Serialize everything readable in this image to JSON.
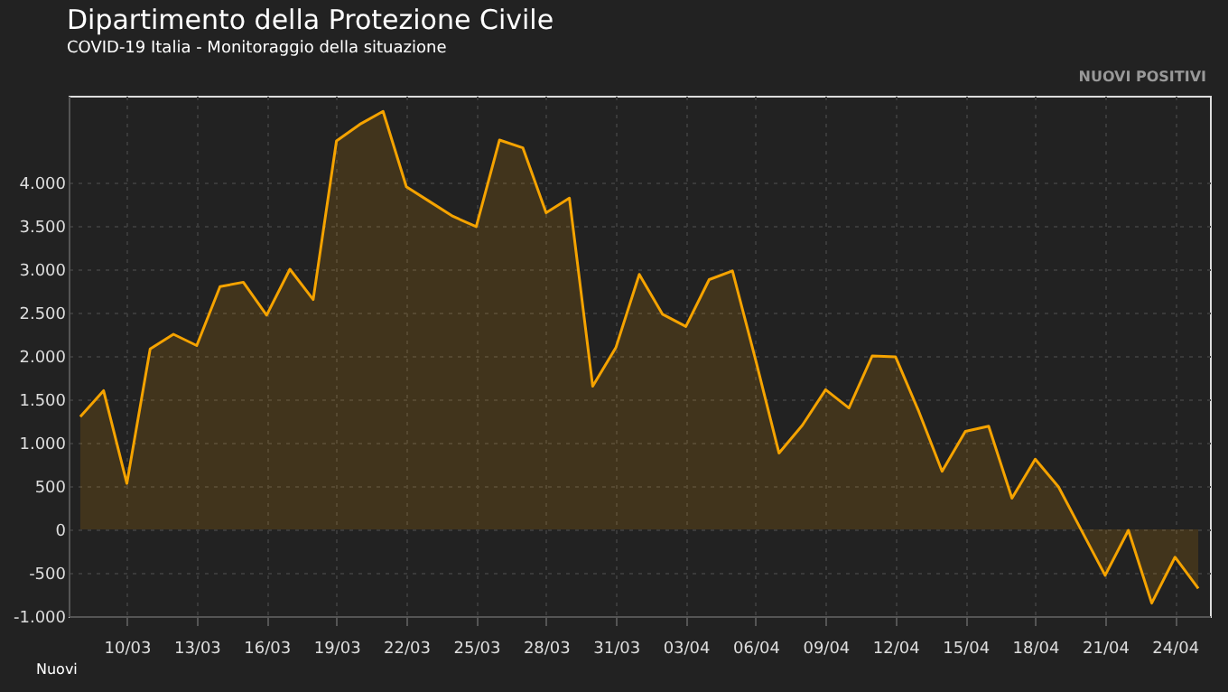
{
  "chart_data": {
    "type": "area",
    "title": "Dipartimento della Protezione Civile",
    "subtitle": "COVID-19 Italia - Monitoraggio della situazione",
    "annotations": [
      "NUOVI POSITIVI",
      "Nuovi"
    ],
    "x": [
      "--03-08",
      "--03-09",
      "--03-10",
      "--03-11",
      "--03-12",
      "--03-13",
      "--03-14",
      "--03-15",
      "--03-16",
      "--03-17",
      "--03-18",
      "--03-19",
      "--03-20",
      "--03-21",
      "--03-22",
      "--03-23",
      "--03-24",
      "--03-25",
      "--03-26",
      "--03-27",
      "--03-28",
      "--03-29",
      "--03-30",
      "--03-31",
      "--04-01",
      "--04-02",
      "--04-03",
      "--04-04",
      "--04-05",
      "--04-06",
      "--04-07",
      "--04-08",
      "--04-09",
      "--04-10",
      "--04-11",
      "--04-12",
      "--04-13",
      "--04-14",
      "--04-15",
      "--04-16",
      "--04-17",
      "--04-18",
      "--04-19",
      "--04-20",
      "--04-21",
      "--04-22",
      "--04-23",
      "--04-24",
      "--04-25"
    ],
    "series": [
      {
        "color": "#f5a300",
        "values": [
          1300,
          1600,
          530,
          2080,
          2250,
          2120,
          2800,
          2850,
          2470,
          3000,
          2650,
          4480,
          4670,
          4820,
          3950,
          3780,
          3610,
          3490,
          4490,
          4400,
          3650,
          3820,
          1650,
          2100,
          2940,
          2480,
          2340,
          2880,
          2980,
          1950,
          880,
          1200,
          1610,
          1400,
          2000,
          1990,
          1360,
          670,
          1130,
          1190,
          360,
          810,
          490,
          -20,
          -530,
          -10,
          -850,
          -320,
          -680
        ]
      }
    ],
    "ylim": [
      -1000,
      5000
    ],
    "yticks": [
      {
        "value": -1000,
        "label": "-1.000"
      },
      {
        "value": -500,
        "label": "-500"
      },
      {
        "value": 0,
        "label": "0"
      },
      {
        "value": 500,
        "label": "500"
      },
      {
        "value": 1000,
        "label": "1.000"
      },
      {
        "value": 1500,
        "label": "1.500"
      },
      {
        "value": 2000,
        "label": "2.000"
      },
      {
        "value": 2500,
        "label": "2.500"
      },
      {
        "value": 3000,
        "label": "3.000"
      },
      {
        "value": 3500,
        "label": "3.500"
      },
      {
        "value": 4000,
        "label": "4.000"
      }
    ],
    "xlim": [
      "--03-07T12:00",
      "--04-25T12:00"
    ],
    "xticks": [
      {
        "value": "--03-10",
        "label": "10/03"
      },
      {
        "value": "--03-13",
        "label": "13/03"
      },
      {
        "value": "--03-16",
        "label": "16/03"
      },
      {
        "value": "--03-19",
        "label": "19/03"
      },
      {
        "value": "--03-22",
        "label": "22/03"
      },
      {
        "value": "--03-25",
        "label": "25/03"
      },
      {
        "value": "--03-28",
        "label": "28/03"
      },
      {
        "value": "--03-31",
        "label": "31/03"
      },
      {
        "value": "--04-03",
        "label": "03/04"
      },
      {
        "value": "--04-06",
        "label": "06/04"
      },
      {
        "value": "--04-09",
        "label": "09/04"
      },
      {
        "value": "--04-12",
        "label": "12/04"
      },
      {
        "value": "--04-15",
        "label": "15/04"
      },
      {
        "value": "--04-18",
        "label": "18/04"
      },
      {
        "value": "--04-21",
        "label": "21/04"
      },
      {
        "value": "--04-24",
        "label": "24/04"
      }
    ],
    "grid": true
  }
}
